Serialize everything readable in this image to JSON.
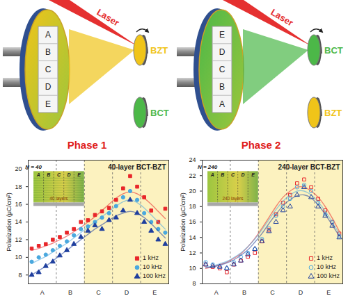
{
  "diagram": {
    "laser": "Laser",
    "phases": [
      {
        "title": "Phase 1",
        "letters": [
          "A",
          "B",
          "C",
          "D",
          "E"
        ],
        "targets": [
          {
            "name": "BZT",
            "color": "#f0c419"
          },
          {
            "name": "BCT",
            "color": "#4cb848"
          }
        ]
      },
      {
        "title": "Phase 2",
        "letters": [
          "E",
          "D",
          "C",
          "B",
          "A"
        ],
        "targets": [
          {
            "name": "BCT",
            "color": "#4cb848"
          },
          {
            "name": "BZT",
            "color": "#f0c419"
          }
        ]
      }
    ]
  },
  "chart_data": [
    {
      "type": "scatter",
      "title": "40-layer BCT-BZT",
      "y_label": "Polarization (μC/cm²)",
      "x": [
        0.125,
        0.375,
        0.625,
        0.875,
        1.125,
        1.375,
        1.625,
        1.875,
        2.125,
        2.375,
        2.625,
        2.875,
        3.125,
        3.375,
        3.625,
        3.875,
        4.125,
        4.375,
        4.625,
        4.875
      ],
      "xlim": [
        0,
        5
      ],
      "xticks": [
        {
          "value": 0.5,
          "label": "A"
        },
        {
          "value": 1.5,
          "label": "B"
        },
        {
          "value": 2.5,
          "label": "C"
        },
        {
          "value": 3.5,
          "label": "D"
        },
        {
          "value": 4.5,
          "label": "E"
        }
      ],
      "ylim": [
        7,
        21
      ],
      "yticks": [
        8,
        10,
        12,
        14,
        16,
        18,
        20
      ],
      "dividers": [
        1,
        2,
        3,
        4
      ],
      "highlight": [
        2,
        5
      ],
      "legend": "lower right",
      "inset": {
        "label": "N = 40",
        "letters": [
          "A",
          "B",
          "C",
          "D",
          "E"
        ],
        "caption": "40 layers"
      },
      "series": [
        {
          "name": "1 kHz",
          "color": "#e8262a",
          "marker": "square",
          "values": [
            11.0,
            11.3,
            11.5,
            12.0,
            12.3,
            12.8,
            13.2,
            14.0,
            14.2,
            14.8,
            15.2,
            15.6,
            16.5,
            17.8,
            19.2,
            18.0,
            16.8,
            15.3,
            14.0,
            15.5
          ],
          "fit": [
            10.8,
            11.0,
            11.3,
            11.6,
            12.0,
            12.4,
            12.9,
            13.4,
            14.0,
            14.6,
            15.3,
            16.0,
            16.7,
            17.2,
            17.4,
            17.2,
            16.7,
            16.0,
            15.2,
            14.4
          ]
        },
        {
          "name": "10 kHz",
          "color": "#4aa8de",
          "marker": "circle",
          "values": [
            9.5,
            10.0,
            10.3,
            10.8,
            11.3,
            11.8,
            12.5,
            13.2,
            13.5,
            14.0,
            14.5,
            15.0,
            15.8,
            16.8,
            17.5,
            16.5,
            15.0,
            14.0,
            13.2,
            12.8
          ],
          "fit": [
            9.3,
            9.7,
            10.1,
            10.6,
            11.1,
            11.6,
            12.2,
            12.8,
            13.4,
            14.0,
            14.6,
            15.2,
            15.8,
            16.3,
            16.5,
            16.2,
            15.6,
            14.8,
            14.0,
            13.2
          ]
        },
        {
          "name": "100 kHz",
          "color": "#1f3f9e",
          "marker": "triangle",
          "values": [
            8.0,
            8.3,
            9.0,
            9.5,
            10.2,
            10.8,
            11.5,
            12.3,
            13.0,
            13.6,
            13.2,
            14.2,
            14.5,
            15.3,
            16.5,
            15.0,
            14.0,
            13.0,
            12.0,
            11.5
          ],
          "fit": [
            8.0,
            8.5,
            9.0,
            9.6,
            10.2,
            10.8,
            11.4,
            12.0,
            12.6,
            13.2,
            13.7,
            14.2,
            14.7,
            15.0,
            15.2,
            15.0,
            14.5,
            13.8,
            13.0,
            12.2
          ]
        }
      ]
    },
    {
      "type": "scatter",
      "title": "240-layer BCT-BZT",
      "y_label": "Polarization (μC/cm²)",
      "x": [
        0.125,
        0.375,
        0.625,
        0.875,
        1.125,
        1.375,
        1.625,
        1.875,
        2.125,
        2.375,
        2.625,
        2.875,
        3.125,
        3.375,
        3.625,
        3.875,
        4.125,
        4.375,
        4.625,
        4.875
      ],
      "xlim": [
        0,
        5
      ],
      "xticks": [
        {
          "value": 0.5,
          "label": "A"
        },
        {
          "value": 1.5,
          "label": "B"
        },
        {
          "value": 2.5,
          "label": "C"
        },
        {
          "value": 3.5,
          "label": "D"
        },
        {
          "value": 4.5,
          "label": "E"
        }
      ],
      "ylim": [
        8,
        24
      ],
      "yticks": [
        8,
        10,
        12,
        14,
        16,
        18,
        20,
        22,
        24
      ],
      "dividers": [
        1,
        2,
        3,
        4
      ],
      "highlight": [
        2,
        5
      ],
      "legend": "lower right",
      "inset": {
        "label": "N = 240",
        "letters": [
          "A",
          "B",
          "C",
          "D",
          "E"
        ],
        "caption": "240 layers"
      },
      "series": [
        {
          "name": "1 kHz",
          "color": "#e8262a",
          "marker": "square-open",
          "values": [
            10.5,
            10.2,
            10.0,
            9.5,
            10.5,
            11.0,
            11.5,
            12.0,
            13.5,
            15.0,
            17.0,
            18.5,
            19.5,
            21.0,
            21.5,
            20.5,
            19.0,
            17.5,
            16.0,
            14.5
          ],
          "fit": [
            10.0,
            10.2,
            10.5,
            10.8,
            11.3,
            11.9,
            12.8,
            13.9,
            15.2,
            16.6,
            18.0,
            19.2,
            20.0,
            20.5,
            20.5,
            20.0,
            19.2,
            18.0,
            16.5,
            14.8
          ]
        },
        {
          "name": "10 kHz",
          "color": "#4aa8de",
          "marker": "circle-open",
          "values": [
            10.8,
            10.5,
            10.2,
            10.0,
            10.8,
            11.5,
            12.0,
            12.5,
            13.8,
            15.2,
            16.8,
            18.0,
            19.0,
            20.5,
            20.8,
            20.0,
            18.5,
            17.0,
            16.0,
            14.2
          ],
          "fit": [
            10.2,
            10.3,
            10.6,
            10.9,
            11.4,
            12.0,
            12.8,
            13.8,
            15.0,
            16.3,
            17.6,
            18.7,
            19.5,
            20.0,
            20.0,
            19.5,
            18.6,
            17.4,
            16.0,
            14.5
          ]
        },
        {
          "name": "100 kHz",
          "color": "#1f3f9e",
          "marker": "triangle-open",
          "values": [
            10.5,
            10.3,
            10.2,
            10.0,
            10.5,
            11.0,
            11.8,
            12.5,
            13.5,
            14.8,
            16.0,
            17.5,
            18.0,
            19.5,
            20.5,
            19.2,
            18.0,
            16.8,
            15.5,
            14.0
          ],
          "fit": [
            10.1,
            10.2,
            10.4,
            10.7,
            11.1,
            11.7,
            12.4,
            13.4,
            14.5,
            15.8,
            17.0,
            18.1,
            18.9,
            19.4,
            19.5,
            19.1,
            18.2,
            17.0,
            15.6,
            14.2
          ]
        }
      ]
    }
  ]
}
